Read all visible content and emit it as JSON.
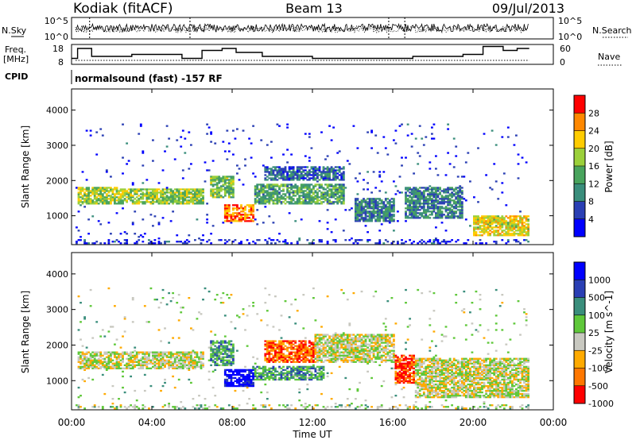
{
  "header": {
    "station": "Kodiak (fitACF)",
    "beam": "Beam 13",
    "date": "09/Jul/2013"
  },
  "strip_labels": {
    "nsky": "N.Sky",
    "nsky_ticks": [
      "10^5",
      "10^0"
    ],
    "nsearch": "N.Search",
    "nsearch_ticks": [
      "10^5",
      "10^0"
    ],
    "freq_line1": "Freq.",
    "freq_line2": "[MHz]",
    "freq_ticks": [
      "18",
      "8"
    ],
    "nave": "Nave",
    "nave_ticks": [
      "60",
      "0"
    ],
    "cpid": "CPID",
    "cpid_text": "normalsound (fast) -157 RF"
  },
  "chart_data": [
    {
      "type": "heatmap",
      "name": "power",
      "ylabel": "Slant Range [km]",
      "y_ticks": [
        "1000",
        "2000",
        "3000",
        "4000"
      ],
      "ylim": [
        180,
        4600
      ],
      "colorbar_label": "Power [dB]",
      "colorbar_ticks": [
        "4",
        "8",
        "12",
        "16",
        "20",
        "24",
        "28"
      ],
      "colors": [
        "#0000ff",
        "#2a3fb4",
        "#3a8e7c",
        "#49a45d",
        "#9bd03a",
        "#ffcc00",
        "#ff8800",
        "#ff0000"
      ],
      "bands": [
        {
          "t0": 0.3,
          "t1": 2.5,
          "r0": 1300,
          "r1": 1800,
          "level": 0.55
        },
        {
          "t0": 2.5,
          "t1": 6.5,
          "r0": 1300,
          "r1": 1750,
          "level": 0.55
        },
        {
          "t0": 6.8,
          "t1": 8.0,
          "r0": 1500,
          "r1": 2100,
          "level": 0.5
        },
        {
          "t0": 7.5,
          "t1": 9.0,
          "r0": 800,
          "r1": 1300,
          "level": 0.8
        },
        {
          "t0": 9.0,
          "t1": 13.5,
          "r0": 1300,
          "r1": 1900,
          "level": 0.4
        },
        {
          "t0": 9.5,
          "t1": 13.5,
          "r0": 2000,
          "r1": 2400,
          "level": 0.25
        },
        {
          "t0": 14.0,
          "t1": 16.0,
          "r0": 800,
          "r1": 1500,
          "level": 0.3
        },
        {
          "t0": 16.5,
          "t1": 19.5,
          "r0": 900,
          "r1": 1800,
          "level": 0.3
        },
        {
          "t0": 20.0,
          "t1": 22.8,
          "r0": 400,
          "r1": 1000,
          "level": 0.65
        }
      ]
    },
    {
      "type": "heatmap",
      "name": "velocity",
      "xlabel": "Time UT",
      "ylabel": "Slant Range [km]",
      "x_ticks": [
        "00:00",
        "04:00",
        "08:00",
        "12:00",
        "16:00",
        "20:00",
        "00:00"
      ],
      "xlim": [
        0,
        24
      ],
      "y_ticks": [
        "1000",
        "2000",
        "3000",
        "4000"
      ],
      "ylim": [
        180,
        4600
      ],
      "colorbar_label": "Velocity [m s^-1]",
      "colorbar_ticks": [
        "1000",
        "500",
        "100",
        "25",
        "-25",
        "-100",
        "-500",
        "-1000"
      ],
      "colors": [
        "#0000ff",
        "#2a3fb4",
        "#3a8e7c",
        "#5fc83a",
        "#c8c8c0",
        "#ffaa00",
        "#ff7700",
        "#ff0000"
      ],
      "bands": [
        {
          "t0": 0.3,
          "t1": 6.5,
          "r0": 1300,
          "r1": 1800,
          "level": 0.55
        },
        {
          "t0": 6.8,
          "t1": 8.0,
          "r0": 1400,
          "r1": 2100,
          "level": 0.35
        },
        {
          "t0": 7.5,
          "t1": 9.0,
          "r0": 800,
          "r1": 1300,
          "level": 0.05
        },
        {
          "t0": 9.0,
          "t1": 12.5,
          "r0": 1000,
          "r1": 1400,
          "level": 0.35
        },
        {
          "t0": 9.5,
          "t1": 12.0,
          "r0": 1500,
          "r1": 2100,
          "level": 0.85
        },
        {
          "t0": 12.0,
          "t1": 16.0,
          "r0": 1500,
          "r1": 2300,
          "level": 0.55
        },
        {
          "t0": 16.0,
          "t1": 17.0,
          "r0": 900,
          "r1": 1700,
          "level": 0.9
        },
        {
          "t0": 17.0,
          "t1": 22.8,
          "r0": 500,
          "r1": 1600,
          "level": 0.55
        }
      ]
    }
  ]
}
